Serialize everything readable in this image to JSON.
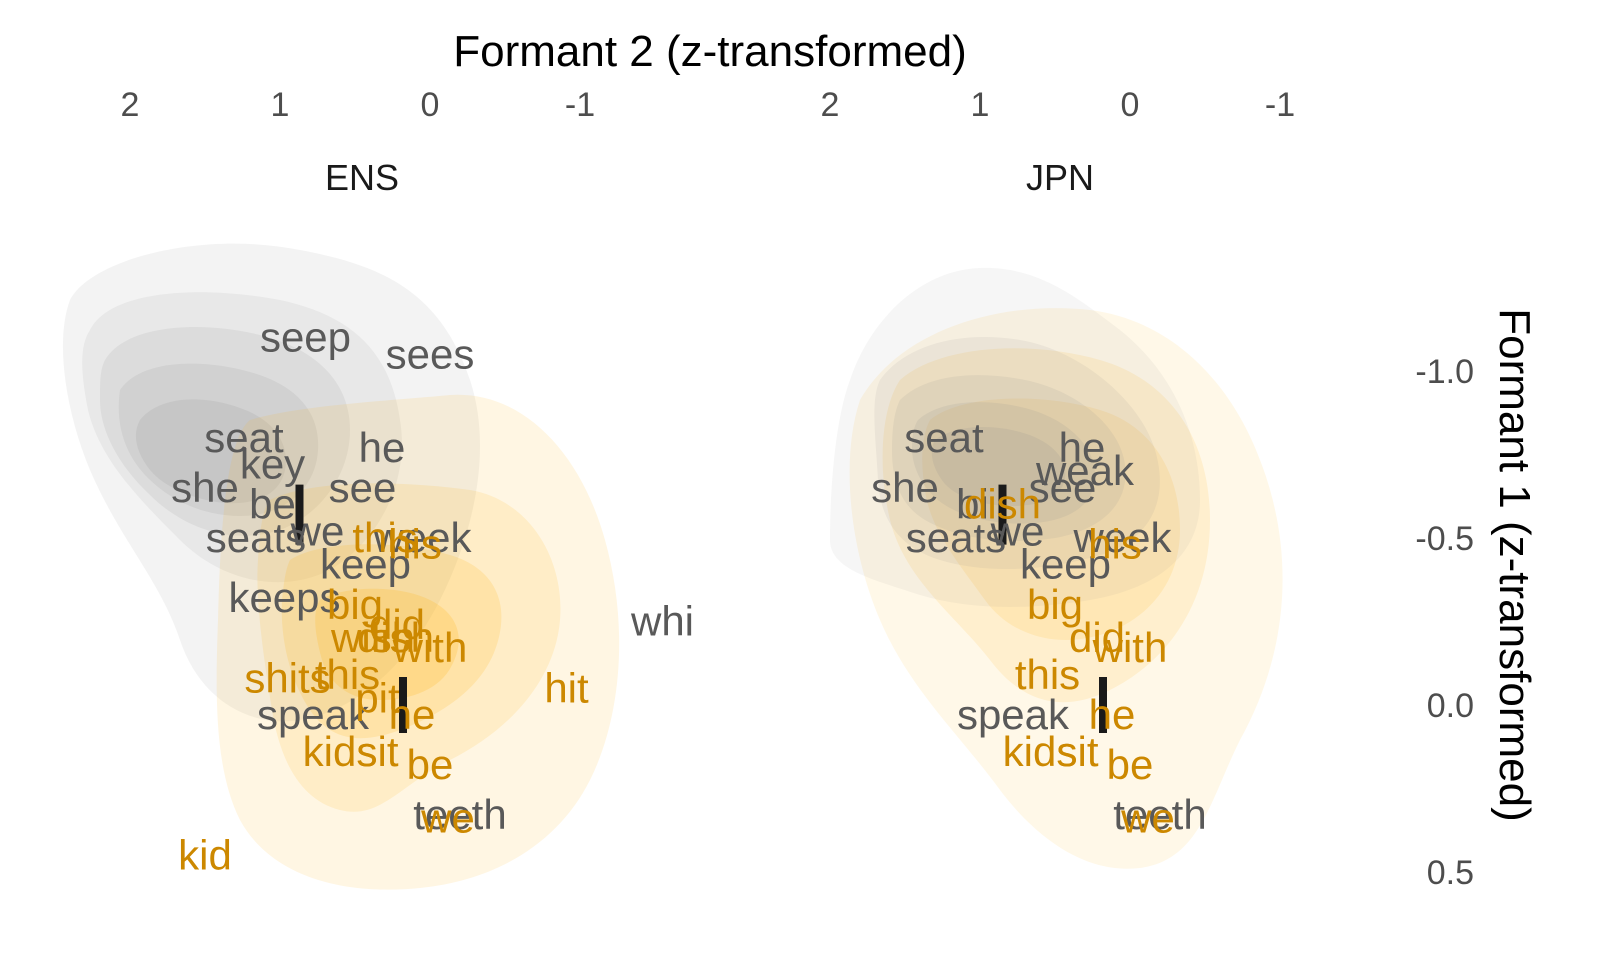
{
  "chart_data": {
    "type": "scatter",
    "x_axis_title": "Formant 2 (z-transformed)",
    "y_axis_title": "Formant 1 (z-transformed)",
    "x_reversed": true,
    "y_reversed": true,
    "x_ticks": [
      "2",
      "1",
      "0",
      "-1"
    ],
    "x_tick_values": [
      2,
      1,
      0,
      -1
    ],
    "y_ticks": [
      "-1.0",
      "-0.5",
      "0.0",
      "0.5"
    ],
    "y_tick_values": [
      -1.0,
      -0.5,
      0.0,
      0.5
    ],
    "xlim": [
      2.1,
      -1.85
    ],
    "ylim": [
      -1.5,
      0.6
    ],
    "colors": {
      "i_words": "#595959",
      "I_words": "#cc8800",
      "I_density": "#ffb71a",
      "i_density": "#8c8c8c",
      "mean_marker": "#1a1a1a"
    },
    "panels": [
      {
        "label": "ENS",
        "means": [
          {
            "vowel": "i",
            "x": 0.87,
            "y": -0.57
          },
          {
            "vowel": "I",
            "x": 0.18,
            "y": 0.0
          }
        ],
        "words": [
          {
            "text": "seep",
            "x": 0.83,
            "y": -1.1,
            "vowel": "i"
          },
          {
            "text": "sees",
            "x": 0.0,
            "y": -1.05,
            "vowel": "i"
          },
          {
            "text": "seat",
            "x": 1.24,
            "y": -0.8,
            "vowel": "i"
          },
          {
            "text": "key",
            "x": 1.05,
            "y": -0.72,
            "vowel": "i"
          },
          {
            "text": "he",
            "x": 0.32,
            "y": -0.77,
            "vowel": "i"
          },
          {
            "text": "she",
            "x": 1.5,
            "y": -0.65,
            "vowel": "i"
          },
          {
            "text": "be",
            "x": 1.05,
            "y": -0.6,
            "vowel": "i"
          },
          {
            "text": "see",
            "x": 0.45,
            "y": -0.65,
            "vowel": "i"
          },
          {
            "text": "we",
            "x": 0.75,
            "y": -0.52,
            "vowel": "i"
          },
          {
            "text": "seats",
            "x": 1.16,
            "y": -0.5,
            "vowel": "i"
          },
          {
            "text": "week",
            "x": 0.05,
            "y": -0.5,
            "vowel": "i"
          },
          {
            "text": "keep",
            "x": 0.43,
            "y": -0.42,
            "vowel": "i"
          },
          {
            "text": "keeps",
            "x": 0.97,
            "y": -0.32,
            "vowel": "i"
          },
          {
            "text": "whi",
            "x": -1.55,
            "y": -0.25,
            "vowel": "i"
          },
          {
            "text": "speak",
            "x": 0.78,
            "y": 0.03,
            "vowel": "i"
          },
          {
            "text": "teeth",
            "x": -0.2,
            "y": 0.33,
            "vowel": "i"
          },
          {
            "text": "his",
            "x": 0.1,
            "y": -0.48,
            "vowel": "I"
          },
          {
            "text": "this",
            "x": 0.3,
            "y": -0.5,
            "vowel": "I"
          },
          {
            "text": "big",
            "x": 0.5,
            "y": -0.3,
            "vowel": "I"
          },
          {
            "text": "dish",
            "x": 0.23,
            "y": -0.2,
            "vowel": "I"
          },
          {
            "text": "wish",
            "x": 0.38,
            "y": -0.2,
            "vowel": "I"
          },
          {
            "text": "with",
            "x": 0.0,
            "y": -0.17,
            "vowel": "I"
          },
          {
            "text": "did",
            "x": 0.22,
            "y": -0.24,
            "vowel": "I"
          },
          {
            "text": "shits",
            "x": 0.95,
            "y": -0.08,
            "vowel": "I"
          },
          {
            "text": "this",
            "x": 0.55,
            "y": -0.09,
            "vowel": "I"
          },
          {
            "text": "pit",
            "x": 0.35,
            "y": -0.02,
            "vowel": "I"
          },
          {
            "text": "hit",
            "x": -0.91,
            "y": -0.05,
            "vowel": "I"
          },
          {
            "text": "he",
            "x": 0.12,
            "y": 0.03,
            "vowel": "I"
          },
          {
            "text": "kids",
            "x": 0.6,
            "y": 0.14,
            "vowel": "I"
          },
          {
            "text": "sit",
            "x": 0.35,
            "y": 0.14,
            "vowel": "I"
          },
          {
            "text": "be",
            "x": 0.0,
            "y": 0.18,
            "vowel": "I"
          },
          {
            "text": "we",
            "x": -0.12,
            "y": 0.34,
            "vowel": "I"
          },
          {
            "text": "kid",
            "x": 1.5,
            "y": 0.45,
            "vowel": "I"
          }
        ]
      },
      {
        "label": "JPN",
        "means": [
          {
            "vowel": "i",
            "x": 0.85,
            "y": -0.57
          },
          {
            "vowel": "I",
            "x": 0.18,
            "y": 0.0
          }
        ],
        "words": [
          {
            "text": "seat",
            "x": 1.24,
            "y": -0.8,
            "vowel": "i"
          },
          {
            "text": "he",
            "x": 0.32,
            "y": -0.77,
            "vowel": "i"
          },
          {
            "text": "weak",
            "x": 0.3,
            "y": -0.7,
            "vowel": "i"
          },
          {
            "text": "she",
            "x": 1.5,
            "y": -0.65,
            "vowel": "i"
          },
          {
            "text": "bi",
            "x": 1.05,
            "y": -0.6,
            "vowel": "i"
          },
          {
            "text": "see",
            "x": 0.45,
            "y": -0.65,
            "vowel": "i"
          },
          {
            "text": "we",
            "x": 0.75,
            "y": -0.52,
            "vowel": "i"
          },
          {
            "text": "seats",
            "x": 1.16,
            "y": -0.5,
            "vowel": "i"
          },
          {
            "text": "week",
            "x": 0.05,
            "y": -0.5,
            "vowel": "i"
          },
          {
            "text": "keep",
            "x": 0.43,
            "y": -0.42,
            "vowel": "i"
          },
          {
            "text": "speak",
            "x": 0.78,
            "y": 0.03,
            "vowel": "i"
          },
          {
            "text": "teeth",
            "x": -0.2,
            "y": 0.33,
            "vowel": "i"
          },
          {
            "text": "dish",
            "x": 0.85,
            "y": -0.6,
            "vowel": "I"
          },
          {
            "text": "his",
            "x": 0.1,
            "y": -0.48,
            "vowel": "I"
          },
          {
            "text": "big",
            "x": 0.5,
            "y": -0.3,
            "vowel": "I"
          },
          {
            "text": "did",
            "x": 0.22,
            "y": -0.2,
            "vowel": "I"
          },
          {
            "text": "with",
            "x": 0.0,
            "y": -0.17,
            "vowel": "I"
          },
          {
            "text": "this",
            "x": 0.55,
            "y": -0.09,
            "vowel": "I"
          },
          {
            "text": "he",
            "x": 0.12,
            "y": 0.03,
            "vowel": "I"
          },
          {
            "text": "kids",
            "x": 0.6,
            "y": 0.14,
            "vowel": "I"
          },
          {
            "text": "sit",
            "x": 0.35,
            "y": 0.14,
            "vowel": "I"
          },
          {
            "text": "be",
            "x": 0.0,
            "y": 0.18,
            "vowel": "I"
          },
          {
            "text": "we",
            "x": -0.12,
            "y": 0.34,
            "vowel": "I"
          }
        ]
      }
    ]
  }
}
